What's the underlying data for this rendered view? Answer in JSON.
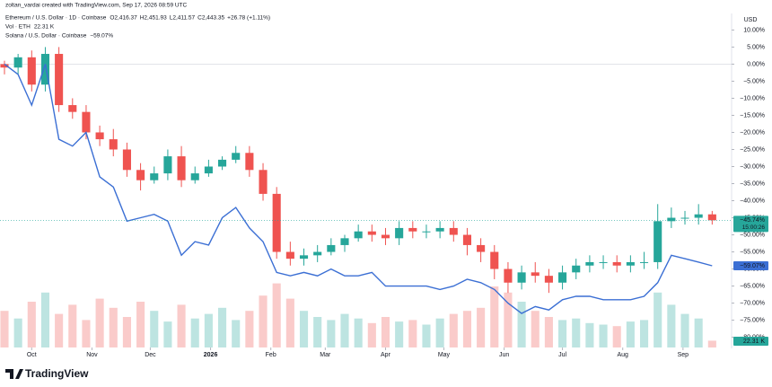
{
  "header": "zoltan_vardai created with TradingView.com, Sep 17, 2026 08:59 UTC",
  "logo": "TradingView",
  "chart_data": {
    "type": "candlestick",
    "axis_unit": "USD",
    "x": [
      0,
      7,
      14,
      21,
      28,
      35,
      42,
      49,
      56,
      63,
      70,
      77,
      84,
      91,
      98,
      105,
      112,
      119,
      126,
      133,
      140,
      147,
      154,
      161,
      168,
      175,
      182,
      189,
      196,
      203,
      210,
      217,
      224,
      231,
      238,
      245,
      252,
      259,
      266,
      273,
      280,
      287,
      294,
      301,
      308,
      315,
      322,
      329,
      336,
      343,
      350,
      357,
      364
    ],
    "xlim": [
      -2.3,
      374
    ],
    "xticks": [
      {
        "value": 14,
        "label": "Oct"
      },
      {
        "value": 45,
        "label": "Nov"
      },
      {
        "value": 75,
        "label": "Dec"
      },
      {
        "value": 106,
        "label": "2026"
      },
      {
        "value": 137,
        "label": "Feb"
      },
      {
        "value": 165,
        "label": "Mar"
      },
      {
        "value": 196,
        "label": "Apr"
      },
      {
        "value": 226,
        "label": "May"
      },
      {
        "value": 257,
        "label": "Jun"
      },
      {
        "value": 287,
        "label": "Jul"
      },
      {
        "value": 318,
        "label": "Aug"
      },
      {
        "value": 349,
        "label": "Sep"
      }
    ],
    "ylim": [
      -83,
      13
    ],
    "yticks": [
      {
        "value": 10,
        "label": "10.00%"
      },
      {
        "value": 5,
        "label": "5.00%"
      },
      {
        "value": 0,
        "label": "0.00%"
      },
      {
        "value": -5,
        "label": "−5.00%"
      },
      {
        "value": -10,
        "label": "−10.00%"
      },
      {
        "value": -15,
        "label": "−15.00%"
      },
      {
        "value": -20,
        "label": "−20.00%"
      },
      {
        "value": -25,
        "label": "−25.00%"
      },
      {
        "value": -30,
        "label": "−30.00%"
      },
      {
        "value": -35,
        "label": "−35.00%"
      },
      {
        "value": -40,
        "label": "−40.00%"
      },
      {
        "value": -45,
        "label": "−45.00%"
      },
      {
        "value": -50,
        "label": "−50.00%"
      },
      {
        "value": -55,
        "label": "−55.00%"
      },
      {
        "value": -60,
        "label": "−60.00%"
      },
      {
        "value": -65,
        "label": "−65.00%"
      },
      {
        "value": -70,
        "label": "−70.00%"
      },
      {
        "value": -75,
        "label": "−75.00%"
      },
      {
        "value": -80,
        "label": "−80.00%"
      }
    ],
    "candles": {
      "name": "Ethereum / U.S. Dollar · 1D · Coinbase",
      "ohlc_labels": [
        "O2,416.37",
        "H2,451.93",
        "L2,411.57",
        "C2,443.35",
        "+26.78 (+1.11%)"
      ],
      "countdown": "15:00:26",
      "up_color": "#26a69a",
      "down_color": "#ef5350",
      "open": [
        0,
        -1,
        2,
        -6,
        3,
        -12,
        -14,
        -20,
        -22,
        -25,
        -31,
        -34,
        -32,
        -27,
        -34,
        -32,
        -30,
        -28,
        -26,
        -31,
        -38,
        -55,
        -57,
        -56,
        -55,
        -53,
        -51,
        -49,
        -50,
        -51,
        -48,
        -49,
        -49,
        -48,
        -50,
        -53,
        -55,
        -60,
        -64,
        -61,
        -62,
        -64,
        -61,
        -59,
        -58,
        -58,
        -59,
        -58,
        -58,
        -46,
        -45,
        -45,
        -44
      ],
      "high": [
        1,
        3,
        4,
        5,
        5,
        -10,
        -12,
        -18,
        -19,
        -23,
        -29,
        -30,
        -25,
        -24,
        -30,
        -28,
        -27,
        -24,
        -24,
        -29,
        -36,
        -52,
        -54,
        -53,
        -51,
        -50,
        -47,
        -47,
        -48,
        -46,
        -46,
        -47,
        -46,
        -46,
        -48,
        -51,
        -53,
        -58,
        -59,
        -58,
        -60,
        -59,
        -57,
        -56,
        -56,
        -56,
        -56,
        -55,
        -41,
        -42,
        -43,
        -41,
        -43
      ],
      "low": [
        -3,
        -3,
        -8,
        -8,
        -14,
        -16,
        -22,
        -24,
        -27,
        -33,
        -37,
        -35,
        -34,
        -36,
        -35,
        -33,
        -31,
        -29,
        -33,
        -40,
        -57,
        -59,
        -59,
        -58,
        -56,
        -55,
        -52,
        -52,
        -53,
        -53,
        -51,
        -51,
        -51,
        -52,
        -56,
        -58,
        -63,
        -67,
        -66,
        -64,
        -67,
        -66,
        -63,
        -61,
        -60,
        -61,
        -61,
        -60,
        -60,
        -48,
        -47,
        -47,
        -47
      ],
      "close": [
        -1,
        2,
        -6,
        3,
        -12,
        -14,
        -20,
        -22,
        -25,
        -31,
        -34,
        -32,
        -27,
        -34,
        -32,
        -30,
        -28,
        -26,
        -31,
        -38,
        -55,
        -57,
        -56,
        -55,
        -53,
        -51,
        -49,
        -50,
        -51,
        -48,
        -49,
        -49,
        -48,
        -50,
        -53,
        -55,
        -60,
        -64,
        -61,
        -62,
        -64,
        -61,
        -59,
        -58,
        -58,
        -59,
        -58,
        -58,
        -46,
        -45,
        -45,
        -44,
        -45.74
      ],
      "value_labels": [
        null,
        null,
        null,
        null,
        null,
        null,
        null,
        null,
        null,
        null,
        null,
        null,
        null,
        null,
        null,
        null,
        null,
        null,
        null,
        null,
        null,
        null,
        null,
        null,
        null,
        null,
        null,
        null,
        null,
        null,
        null,
        null,
        null,
        null,
        null,
        null,
        null,
        null,
        null,
        null,
        null,
        null,
        null,
        null,
        null,
        null,
        null,
        null,
        null,
        null,
        null,
        null,
        "−45.74%"
      ]
    },
    "volume": {
      "name": "Vol · ETH",
      "ylim": [
        0,
        250
      ],
      "values": [
        120,
        95,
        150,
        180,
        110,
        140,
        90,
        160,
        130,
        100,
        150,
        120,
        85,
        140,
        95,
        110,
        130,
        90,
        120,
        170,
        210,
        160,
        120,
        100,
        90,
        110,
        95,
        80,
        100,
        85,
        90,
        75,
        95,
        110,
        120,
        130,
        200,
        180,
        150,
        120,
        100,
        90,
        95,
        80,
        75,
        70,
        85,
        90,
        180,
        140,
        110,
        95,
        22.31
      ],
      "value_labels": [
        null,
        null,
        null,
        null,
        null,
        null,
        null,
        null,
        null,
        null,
        null,
        null,
        null,
        null,
        null,
        null,
        null,
        null,
        null,
        null,
        null,
        null,
        null,
        null,
        null,
        null,
        null,
        null,
        null,
        null,
        null,
        null,
        null,
        null,
        null,
        null,
        null,
        null,
        null,
        null,
        null,
        null,
        null,
        null,
        null,
        null,
        null,
        null,
        null,
        null,
        null,
        null,
        "22.31 K"
      ]
    },
    "series": [
      {
        "name": "Solana / U.S. Dollar · Coinbase",
        "color": "#3b6fd4",
        "values": [
          0,
          -3,
          -12,
          0,
          -22,
          -24,
          -20,
          -33,
          -36,
          -46,
          -45,
          -44,
          -46,
          -56,
          -52,
          -53,
          -45,
          -42,
          -48,
          -52,
          -61,
          -62,
          -61,
          -62,
          -60,
          -62,
          -62,
          -61,
          -65,
          -65,
          -65,
          -65,
          -66,
          -65,
          -63,
          -64,
          -66,
          -70,
          -73,
          -71,
          -72,
          -69,
          -68,
          -68,
          -69,
          -69,
          -69,
          -68,
          -64,
          -56,
          -57,
          -58,
          -59.07
        ],
        "value_labels": [
          null,
          null,
          null,
          null,
          null,
          null,
          null,
          null,
          null,
          null,
          null,
          null,
          null,
          null,
          null,
          null,
          null,
          null,
          null,
          null,
          null,
          null,
          null,
          null,
          null,
          null,
          null,
          null,
          null,
          null,
          null,
          null,
          null,
          null,
          null,
          null,
          null,
          null,
          null,
          null,
          null,
          null,
          null,
          null,
          null,
          null,
          null,
          null,
          null,
          null,
          null,
          null,
          "−59.07%"
        ]
      }
    ]
  }
}
